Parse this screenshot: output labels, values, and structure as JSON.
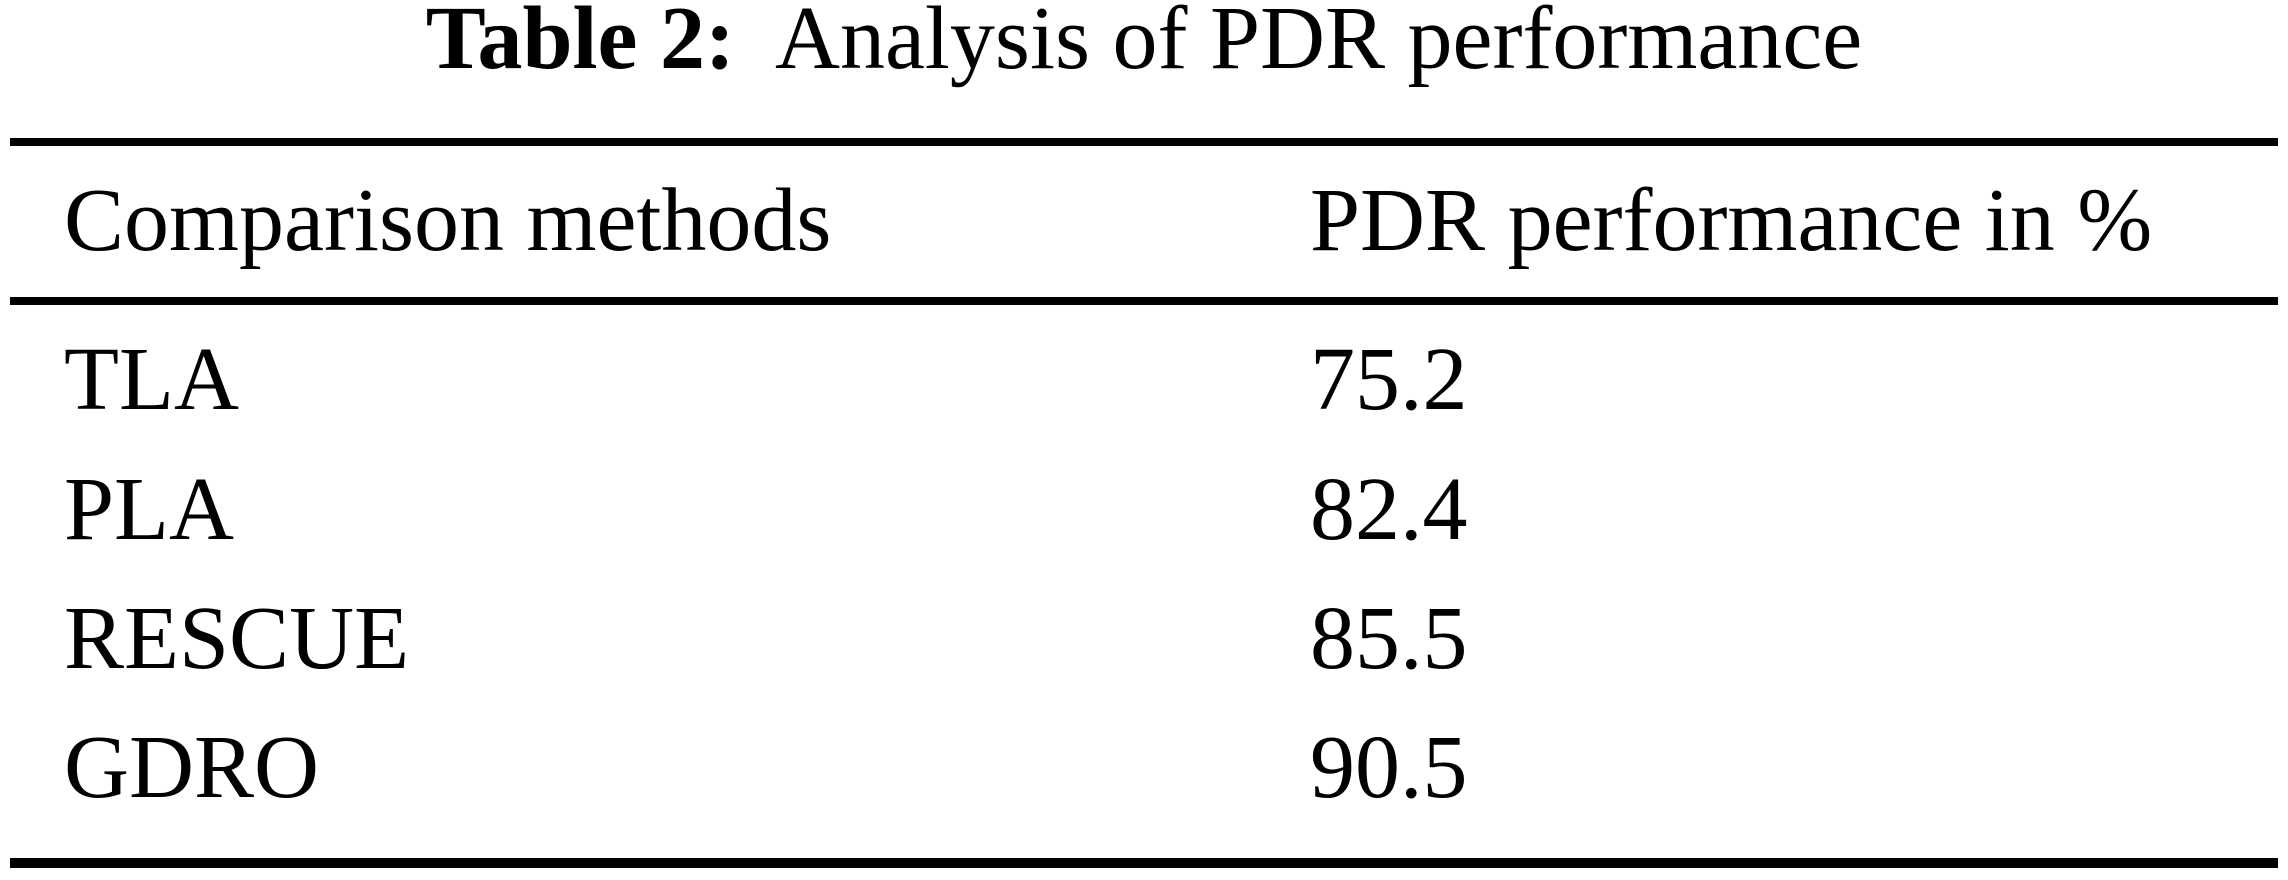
{
  "caption": {
    "prefix": "Table 2:",
    "title": "Analysis of PDR performance"
  },
  "table": {
    "headers": {
      "method": "Comparison methods",
      "value": "PDR performance in %"
    },
    "rows": [
      {
        "method": "TLA",
        "value": "75.2"
      },
      {
        "method": "PLA",
        "value": "82.4"
      },
      {
        "method": "RESCUE",
        "value": "85.5"
      },
      {
        "method": "GDRO",
        "value": "90.5"
      }
    ]
  },
  "colors": {
    "background": "#ffffff",
    "text": "#000000",
    "rule": "#000000"
  },
  "chart_data": {
    "type": "table",
    "title": "Table 2: Analysis of PDR performance",
    "columns": [
      "Comparison methods",
      "PDR performance in %"
    ],
    "rows": [
      [
        "TLA",
        75.2
      ],
      [
        "PLA",
        82.4
      ],
      [
        "RESCUE",
        85.5
      ],
      [
        "GDRO",
        90.5
      ]
    ]
  }
}
